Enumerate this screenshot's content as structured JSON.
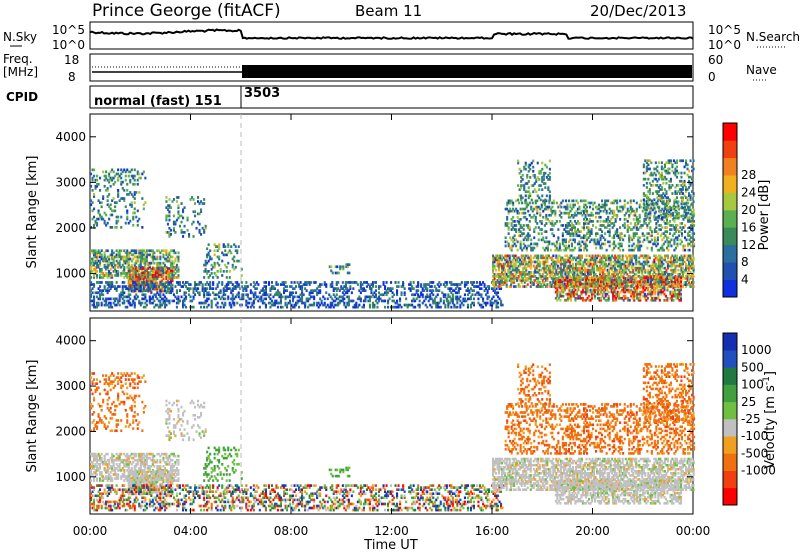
{
  "header": {
    "station": "Prince George (fitACF)",
    "beam": "Beam 11",
    "date": "20/Dec/2013"
  },
  "top_panels": {
    "nsky_label": "N.Sky",
    "nsky_ticks": [
      "10^5",
      "10^0"
    ],
    "nsearch_label": "N.Search",
    "nsearch_ticks": [
      "10^5",
      "10^0"
    ],
    "freq_label_1": "Freq.",
    "freq_label_2": "[MHz]",
    "freq_ticks": [
      "18",
      "8"
    ],
    "nave_label": "Nave",
    "nave_ticks": [
      "60",
      "0"
    ],
    "cpid_label": "CPID",
    "cpid_segments": [
      {
        "label": "normal (fast) 151",
        "start_hour": 0,
        "end_hour": 6
      },
      {
        "label": "3503",
        "start_hour": 6,
        "end_hour": 24
      }
    ]
  },
  "colors": {
    "power_scale": [
      "#1030e0",
      "#2050b0",
      "#2a6fa0",
      "#3a8a5a",
      "#5ab050",
      "#a8c840",
      "#f0b020",
      "#f08020",
      "#f04010",
      "#ff0000"
    ],
    "velocity_scale": [
      "#1430b0",
      "#2050c0",
      "#207a40",
      "#40a040",
      "#70c040",
      "#c0c0c0",
      "#f0a020",
      "#f07010",
      "#f04010",
      "#ff0000"
    ]
  },
  "chart_data": [
    {
      "type": "heatmap",
      "title": "Power",
      "xlabel": "",
      "ylabel": "Slant Range [km]",
      "xlim": [
        0,
        24
      ],
      "ylim": [
        180,
        4500
      ],
      "y_ticks": [
        "1000",
        "2000",
        "3000",
        "4000"
      ],
      "colorbar_label": "Power [dB]",
      "colorbar_ticks": [
        "4",
        "8",
        "12",
        "16",
        "20",
        "24",
        "28"
      ],
      "mode_change_hour": 6
    },
    {
      "type": "heatmap",
      "title": "Velocity",
      "xlabel": "Time UT",
      "ylabel": "Slant Range [km]",
      "xlim": [
        0,
        24
      ],
      "ylim": [
        180,
        4500
      ],
      "x_ticks": [
        "00:00",
        "04:00",
        "08:00",
        "12:00",
        "16:00",
        "20:00",
        "00:00"
      ],
      "y_ticks": [
        "1000",
        "2000",
        "3000",
        "4000"
      ],
      "colorbar_label": "Velocity [m s^-1]",
      "colorbar_ticks": [
        "1000",
        "500",
        "100",
        "25",
        "-25",
        "-100",
        "-500",
        "-1000"
      ],
      "mode_change_hour": 6
    }
  ]
}
